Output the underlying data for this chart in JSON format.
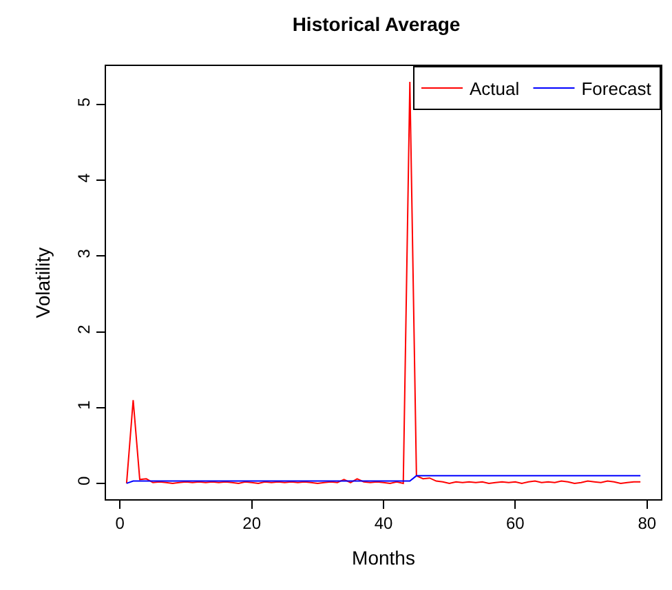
{
  "chart_data": {
    "type": "line",
    "title": "Historical Average",
    "xlabel": "Months",
    "ylabel": "Volatility",
    "x": [
      1,
      2,
      3,
      4,
      5,
      6,
      7,
      8,
      9,
      10,
      11,
      12,
      13,
      14,
      15,
      16,
      17,
      18,
      19,
      20,
      21,
      22,
      23,
      24,
      25,
      26,
      27,
      28,
      29,
      30,
      31,
      32,
      33,
      34,
      35,
      36,
      37,
      38,
      39,
      40,
      41,
      42,
      43,
      44,
      45,
      46,
      47,
      48,
      49,
      50,
      51,
      52,
      53,
      54,
      55,
      56,
      57,
      58,
      59,
      60,
      61,
      62,
      63,
      64,
      65,
      66,
      67,
      68,
      69,
      70,
      71,
      72,
      73,
      74,
      75,
      76,
      77,
      78,
      79
    ],
    "series": [
      {
        "name": "Actual",
        "color": "#ff0000",
        "values": [
          0,
          1.1,
          0.05,
          0.06,
          0.01,
          0.02,
          0.01,
          0,
          0.01,
          0.02,
          0.01,
          0.02,
          0.01,
          0.02,
          0.01,
          0.02,
          0.01,
          0,
          0.02,
          0.01,
          0,
          0.02,
          0.01,
          0.02,
          0.01,
          0.02,
          0.01,
          0.02,
          0.01,
          0,
          0.01,
          0.02,
          0.01,
          0.05,
          0.01,
          0.06,
          0.02,
          0.01,
          0.02,
          0.01,
          0,
          0.02,
          0,
          5.3,
          0.1,
          0.06,
          0.07,
          0.03,
          0.02,
          0,
          0.02,
          0.01,
          0.02,
          0.01,
          0.02,
          0,
          0.01,
          0.02,
          0.01,
          0.02,
          0,
          0.02,
          0.03,
          0.01,
          0.02,
          0.01,
          0.03,
          0.02,
          0,
          0.01,
          0.03,
          0.02,
          0.01,
          0.03,
          0.02,
          0,
          0.01,
          0.02,
          0.02
        ]
      },
      {
        "name": "Forecast",
        "color": "#0000ff",
        "values": [
          0,
          0.03,
          0.03,
          0.03,
          0.03,
          0.03,
          0.03,
          0.03,
          0.03,
          0.03,
          0.03,
          0.03,
          0.03,
          0.03,
          0.03,
          0.03,
          0.03,
          0.03,
          0.03,
          0.03,
          0.03,
          0.03,
          0.03,
          0.03,
          0.03,
          0.03,
          0.03,
          0.03,
          0.03,
          0.03,
          0.03,
          0.03,
          0.03,
          0.03,
          0.03,
          0.03,
          0.03,
          0.03,
          0.03,
          0.03,
          0.03,
          0.03,
          0.03,
          0.03,
          0.1,
          0.1,
          0.1,
          0.1,
          0.1,
          0.1,
          0.1,
          0.1,
          0.1,
          0.1,
          0.1,
          0.1,
          0.1,
          0.1,
          0.1,
          0.1,
          0.1,
          0.1,
          0.1,
          0.1,
          0.1,
          0.1,
          0.1,
          0.1,
          0.1,
          0.1,
          0.1,
          0.1,
          0.1,
          0.1,
          0.1,
          0.1,
          0.1,
          0.1,
          0.1
        ]
      }
    ],
    "xlim": [
      -2.12,
      82.12
    ],
    "ylim": [
      -0.21,
      5.51
    ],
    "xticks": [
      0,
      20,
      40,
      60,
      80
    ],
    "yticks": [
      0,
      1,
      2,
      3,
      4,
      5
    ],
    "legend": "top right",
    "grid": false,
    "marker": "none",
    "line_style": "solid"
  }
}
